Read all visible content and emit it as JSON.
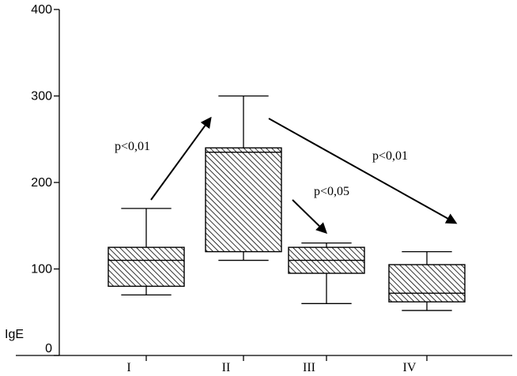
{
  "chart_data": {
    "type": "boxplot",
    "title": "",
    "xlabel": "",
    "ylabel": "IgE",
    "ylim": [
      0,
      400
    ],
    "yticks": [
      0,
      100,
      200,
      300,
      400
    ],
    "ytick_labels": [
      "0",
      "100",
      "200",
      "300",
      "400"
    ],
    "categories": [
      "I",
      "II",
      "III",
      "IV"
    ],
    "boxes": [
      {
        "category": "I",
        "min": 70,
        "q1": 80,
        "median": 110,
        "q3": 125,
        "max": 170
      },
      {
        "category": "II",
        "min": 110,
        "q1": 120,
        "median": 235,
        "q3": 240,
        "max": 300
      },
      {
        "category": "III",
        "min": 60,
        "q1": 95,
        "median": 110,
        "q3": 125,
        "max": 130
      },
      {
        "category": "IV",
        "min": 52,
        "q1": 62,
        "median": 72,
        "q3": 105,
        "max": 120
      }
    ],
    "annotations": [
      {
        "text": "p<0,01",
        "from": "I",
        "to": "II"
      },
      {
        "text": "p<0,05",
        "from": "II",
        "to": "III"
      },
      {
        "text": "p<0,01",
        "from": "II",
        "to": "IV"
      }
    ],
    "colors": {
      "box_hatch": "#000000",
      "box_fill": "#ffffff",
      "axis": "#000000"
    },
    "grid": false,
    "legend": "none"
  }
}
